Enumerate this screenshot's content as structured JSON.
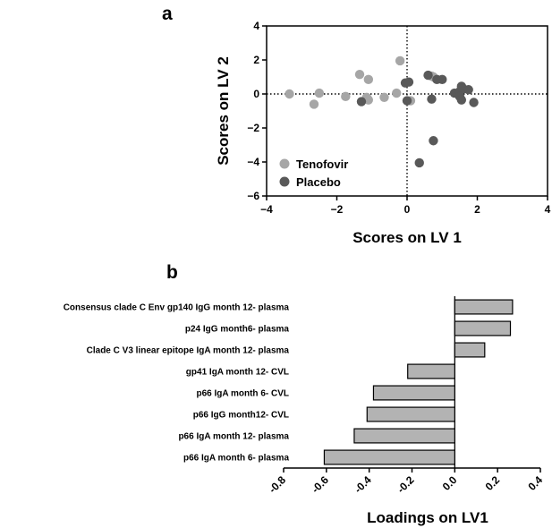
{
  "chart_data": [
    {
      "panel": "a",
      "type": "scatter",
      "xlabel": "Scores on LV 1",
      "ylabel": "Scores on LV 2",
      "xlim": [
        -4,
        4
      ],
      "ylim": [
        -6,
        4
      ],
      "xticks": [
        "−4",
        "−2",
        "0",
        "2",
        "4"
      ],
      "yticks": [
        "4",
        "2",
        "0",
        "−2",
        "−4",
        "−6"
      ],
      "reference_lines": {
        "x": 0,
        "y": 0,
        "style": "dotted"
      },
      "legend_position": "bottom-left",
      "series": [
        {
          "name": "Tenofovir",
          "color": "#a6a6a6",
          "points": [
            [
              -3.35,
              0.0
            ],
            [
              -2.65,
              -0.6
            ],
            [
              -2.5,
              0.05
            ],
            [
              -1.75,
              -0.15
            ],
            [
              -1.35,
              1.15
            ],
            [
              -1.1,
              0.85
            ],
            [
              -1.15,
              -0.2
            ],
            [
              -1.1,
              -0.35
            ],
            [
              -0.65,
              -0.2
            ],
            [
              -0.3,
              0.05
            ],
            [
              -0.2,
              1.95
            ],
            [
              0.1,
              -0.4
            ],
            [
              0.75,
              1.0
            ],
            [
              0.7,
              1.05
            ]
          ]
        },
        {
          "name": "Placebo",
          "color": "#595959",
          "points": [
            [
              -1.3,
              -0.45
            ],
            [
              -0.05,
              0.65
            ],
            [
              0.05,
              0.7
            ],
            [
              0.0,
              -0.4
            ],
            [
              0.6,
              1.1
            ],
            [
              0.85,
              0.85
            ],
            [
              1.0,
              0.85
            ],
            [
              0.7,
              -0.3
            ],
            [
              1.35,
              0.05
            ],
            [
              1.5,
              0.15
            ],
            [
              1.55,
              0.45
            ],
            [
              1.6,
              0.3
            ],
            [
              1.5,
              -0.15
            ],
            [
              1.55,
              -0.35
            ],
            [
              1.75,
              0.25
            ],
            [
              1.9,
              -0.5
            ],
            [
              0.75,
              -2.75
            ],
            [
              0.35,
              -4.05
            ]
          ]
        }
      ]
    },
    {
      "panel": "b",
      "type": "bar",
      "orientation": "horizontal",
      "xlabel": "Loadings on LV1",
      "xlim": [
        -0.8,
        0.4
      ],
      "xticks": [
        "-0.8",
        "-0.6",
        "-0.4",
        "-0.2",
        "0.0",
        "0.2",
        "0.4"
      ],
      "bar_color": "#b3b3b3",
      "categories": [
        "Consensus clade C Env gp140 IgG month 12- plasma",
        "p24 IgG month6- plasma",
        "Clade C V3 linear epitope IgA month 12- plasma",
        "gp41 IgA month 12- CVL",
        "p66 IgA month 6- CVL",
        "p66 IgG month12- CVL",
        "p66 IgA month 12- plasma",
        "p66 IgA month 6- plasma"
      ],
      "values": [
        0.27,
        0.26,
        0.14,
        -0.22,
        -0.38,
        -0.41,
        -0.47,
        -0.61
      ]
    }
  ]
}
